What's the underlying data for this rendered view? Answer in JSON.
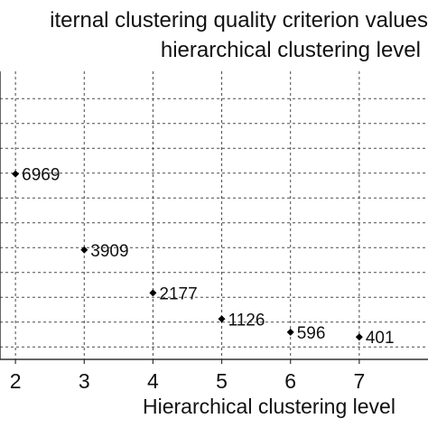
{
  "chart_data": {
    "type": "scatter",
    "title_line1": "iternal clustering quality criterion values",
    "title_line2": "hierarchical clustering level",
    "xlabel": "Hierarchical clustering level",
    "ylabel": "",
    "x_ticks": [
      2,
      3,
      4,
      5,
      6,
      7
    ],
    "xlim": [
      1.775,
      8
    ],
    "ylim": [
      -500,
      11100
    ],
    "y_gridlines": [
      0,
      1000,
      2000,
      3000,
      4000,
      5000,
      6000,
      7000,
      8000,
      9000,
      10000
    ],
    "grid": true,
    "grid_style": "dashed",
    "marker": "diamond",
    "point_color": "#000000",
    "points": [
      {
        "x": 2,
        "y": 6969,
        "label": "6969"
      },
      {
        "x": 3,
        "y": 3909,
        "label": "3909"
      },
      {
        "x": 4,
        "y": 2177,
        "label": "2177"
      },
      {
        "x": 5,
        "y": 1126,
        "label": "1126"
      },
      {
        "x": 6,
        "y": 596,
        "label": "596"
      },
      {
        "x": 7,
        "y": 401,
        "label": "401"
      }
    ]
  }
}
